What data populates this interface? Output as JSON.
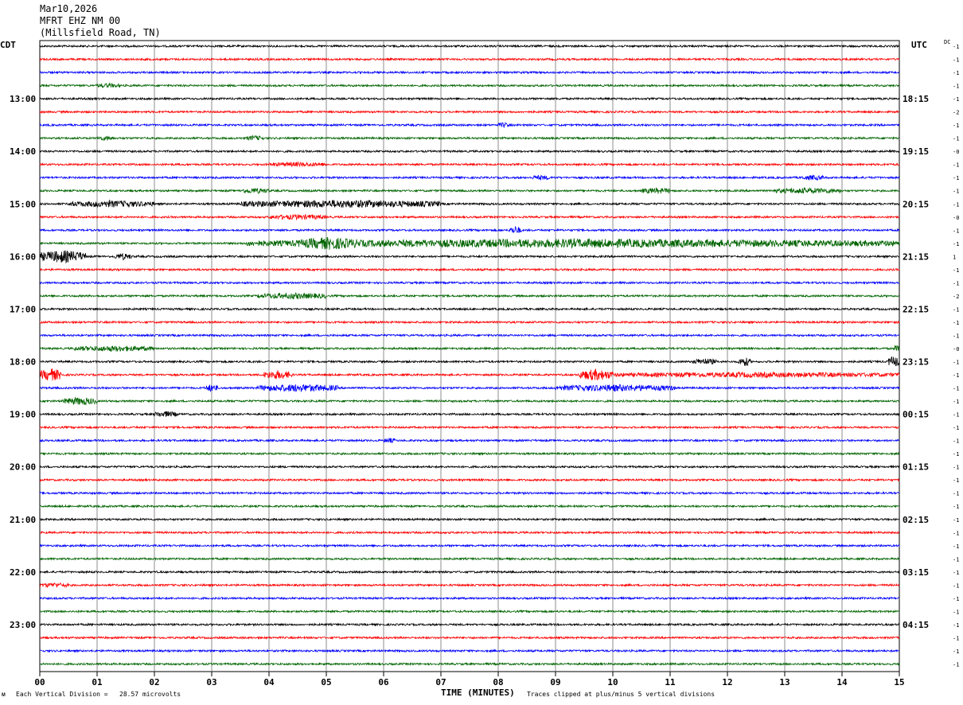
{
  "header": {
    "date": "Mar10,2026",
    "station": "MFRT EHZ NM 00",
    "location": "(Millsfield Road, TN)"
  },
  "labels": {
    "left_tz": "CDT",
    "right_tz": "UTC",
    "dc": "DC",
    "corner_mark": "ᴍ"
  },
  "footer": {
    "scale_note": "Each Vertical Division =   28.57 microvolts",
    "xlabel": "TIME (MINUTES)",
    "clip_note": "Traces clipped at plus/minus 5 vertical divisions"
  },
  "chart_data": {
    "type": "line",
    "subtype": "helicorder",
    "rows_total": 48,
    "minutes_per_row": 15,
    "trace_colors": [
      "#000000",
      "#ff0000",
      "#0000ff",
      "#006400"
    ],
    "x_ticks": [
      "00",
      "01",
      "02",
      "03",
      "04",
      "05",
      "06",
      "07",
      "08",
      "09",
      "10",
      "11",
      "12",
      "13",
      "14",
      "15"
    ],
    "xlim": [
      0,
      15
    ],
    "left_time_labels": [
      {
        "row": 4,
        "label": "13:00"
      },
      {
        "row": 8,
        "label": "14:00"
      },
      {
        "row": 12,
        "label": "15:00"
      },
      {
        "row": 16,
        "label": "16:00"
      },
      {
        "row": 20,
        "label": "17:00"
      },
      {
        "row": 24,
        "label": "18:00"
      },
      {
        "row": 28,
        "label": "19:00"
      },
      {
        "row": 32,
        "label": "20:00"
      },
      {
        "row": 36,
        "label": "21:00"
      },
      {
        "row": 40,
        "label": "22:00"
      },
      {
        "row": 44,
        "label": "23:00"
      }
    ],
    "right_time_labels": [
      {
        "row": 4,
        "label": "18:15"
      },
      {
        "row": 8,
        "label": "19:15"
      },
      {
        "row": 12,
        "label": "20:15"
      },
      {
        "row": 16,
        "label": "21:15"
      },
      {
        "row": 20,
        "label": "22:15"
      },
      {
        "row": 24,
        "label": "23:15"
      },
      {
        "row": 28,
        "label": "00:15"
      },
      {
        "row": 32,
        "label": "01:15"
      },
      {
        "row": 36,
        "label": "02:15"
      },
      {
        "row": 40,
        "label": "03:15"
      },
      {
        "row": 44,
        "label": "04:15"
      }
    ],
    "dc_offsets": [
      "-1",
      "-1",
      "-1",
      "-1",
      "-1",
      "-2",
      "-1",
      "-1",
      "-0",
      "-1",
      "-1",
      "-1",
      "-1",
      "-0",
      "-1",
      "-1",
      "1",
      "-1",
      "-1",
      "-2",
      "-1",
      "-1",
      "-1",
      "-0",
      "-1",
      "-1",
      "-1",
      "-1",
      "-1",
      "-1",
      "-1",
      "-1",
      "-1",
      "-1",
      "-1",
      "-1",
      "-1",
      "-1",
      "-1",
      "-1",
      "-1",
      "-1",
      "-1",
      "-1",
      "-1",
      "-1",
      "-1",
      "-1"
    ],
    "events": [
      {
        "row": 3,
        "start": 1.0,
        "end": 1.4,
        "amp": 1.3
      },
      {
        "row": 7,
        "start": 1.0,
        "end": 1.3,
        "amp": 1.4
      },
      {
        "row": 7,
        "start": 3.6,
        "end": 3.9,
        "amp": 1.6
      },
      {
        "row": 6,
        "start": 8.0,
        "end": 8.2,
        "amp": 1.5
      },
      {
        "row": 9,
        "start": 4.0,
        "end": 5.0,
        "amp": 1.3
      },
      {
        "row": 10,
        "start": 8.6,
        "end": 8.9,
        "amp": 1.4
      },
      {
        "row": 10,
        "start": 13.3,
        "end": 13.7,
        "amp": 1.5
      },
      {
        "row": 11,
        "start": 3.5,
        "end": 4.0,
        "amp": 1.8
      },
      {
        "row": 11,
        "start": 10.5,
        "end": 11.0,
        "amp": 2.0
      },
      {
        "row": 11,
        "start": 12.8,
        "end": 14.0,
        "amp": 1.9
      },
      {
        "row": 12,
        "start": 0.5,
        "end": 2.0,
        "amp": 2.3
      },
      {
        "row": 12,
        "start": 3.5,
        "end": 7.0,
        "amp": 2.8
      },
      {
        "row": 13,
        "start": 4.0,
        "end": 5.0,
        "amp": 1.6
      },
      {
        "row": 14,
        "start": 8.2,
        "end": 8.4,
        "amp": 3.0
      },
      {
        "row": 15,
        "start": 3.6,
        "end": 15.0,
        "amp": 3.2
      },
      {
        "row": 15,
        "start": 4.5,
        "end": 5.6,
        "amp": 5.0
      },
      {
        "row": 16,
        "start": 0.0,
        "end": 0.8,
        "amp": 5.0
      },
      {
        "row": 16,
        "start": 1.3,
        "end": 1.6,
        "amp": 2.2
      },
      {
        "row": 19,
        "start": 3.8,
        "end": 5.0,
        "amp": 2.1
      },
      {
        "row": 23,
        "start": 0.6,
        "end": 2.0,
        "amp": 1.9
      },
      {
        "row": 23,
        "start": 14.9,
        "end": 15.0,
        "amp": 2.2
      },
      {
        "row": 24,
        "start": 11.4,
        "end": 11.8,
        "amp": 2.2
      },
      {
        "row": 24,
        "start": 12.2,
        "end": 12.4,
        "amp": 3.5
      },
      {
        "row": 24,
        "start": 14.8,
        "end": 15.0,
        "amp": 4.5
      },
      {
        "row": 25,
        "start": 0.0,
        "end": 0.4,
        "amp": 5.0
      },
      {
        "row": 25,
        "start": 3.9,
        "end": 4.4,
        "amp": 3.3
      },
      {
        "row": 25,
        "start": 9.4,
        "end": 10.0,
        "amp": 4.5
      },
      {
        "row": 25,
        "start": 10.0,
        "end": 15.0,
        "amp": 1.6
      },
      {
        "row": 26,
        "start": 2.9,
        "end": 3.1,
        "amp": 2.8
      },
      {
        "row": 26,
        "start": 3.8,
        "end": 5.2,
        "amp": 2.8
      },
      {
        "row": 26,
        "start": 9.0,
        "end": 11.1,
        "amp": 2.4
      },
      {
        "row": 27,
        "start": 0.4,
        "end": 1.0,
        "amp": 2.8
      },
      {
        "row": 28,
        "start": 2.0,
        "end": 2.4,
        "amp": 2.0
      },
      {
        "row": 30,
        "start": 6.0,
        "end": 6.2,
        "amp": 1.5
      },
      {
        "row": 41,
        "start": 0.0,
        "end": 0.5,
        "amp": 1.4
      }
    ]
  }
}
